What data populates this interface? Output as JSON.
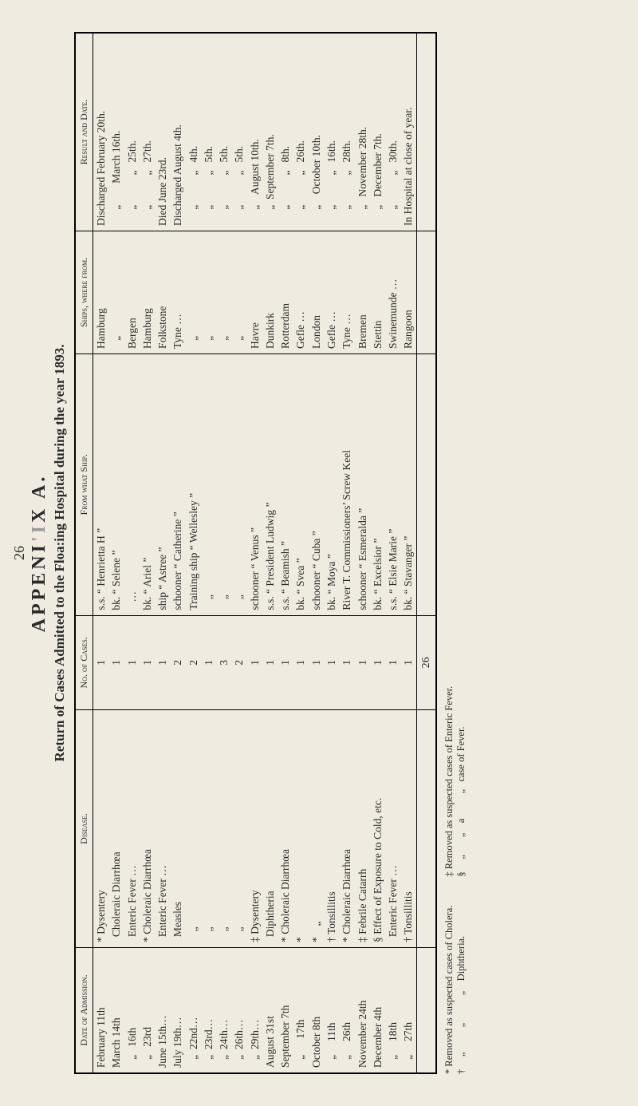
{
  "pageNumber": "26",
  "appendix": {
    "pre": "APPENI",
    "cut": "'I",
    "post": "X A."
  },
  "subtitle": {
    "pre": "Return of Cases Admitted to the Floa",
    "cut": ":",
    "post": "ing Hospital during the year 1893."
  },
  "headers": {
    "date": "Date of Admission.",
    "disease": "Disease.",
    "cases": "No. of Cases.",
    "ship": "From what Ship.",
    "from": "Ships, where from.",
    "result": "Result and Date."
  },
  "rows": [
    {
      "date": "February 11th",
      "disease": "* Dysentery",
      "cases": "1",
      "ship": "s.s. “ Henrietta H ”",
      "from": "Hamburg",
      "result": "Discharged February 20th."
    },
    {
      "date": "March 14th",
      "disease": "  Choleraic Diarrhœa",
      "cases": "1",
      "ship": "bk. “ Selene ”",
      "from": "   „",
      "result": "      „        March 16th."
    },
    {
      "date": "   „   16th",
      "disease": "  Enteric Fever …",
      "cases": "1",
      "ship": "   …",
      "from": "Bergen",
      "result": "      „           „   25th."
    },
    {
      "date": "   „   23rd",
      "disease": "* Choleraic Diarrhœa",
      "cases": "1",
      "ship": "bk. “ Ariel ”",
      "from": "Hamburg",
      "result": "      „           „   27th."
    },
    {
      "date": "June 15th…",
      "disease": "  Enteric Fever …",
      "cases": "1",
      "ship": "ship “ Astree ”",
      "from": "Folkstone",
      "result": "Died June 23rd."
    },
    {
      "date": "July 19th…",
      "disease": "  Measles",
      "cases": "2",
      "ship": "schooner “ Catherine ”",
      "from": "Tyne …",
      "result": "Discharged August 4th."
    },
    {
      "date": "   „  22nd…",
      "disease": "    „",
      "cases": "2",
      "ship": "Training ship “ Wellesley ”",
      "from": "   „",
      "result": "      „           „   4th."
    },
    {
      "date": "   „  23rd…",
      "disease": "    „",
      "cases": "1",
      "ship": "    „",
      "from": "   „",
      "result": "      „           „   5th."
    },
    {
      "date": "   „  24th…",
      "disease": "    „",
      "cases": "3",
      "ship": "    „",
      "from": "   „",
      "result": "      „           „   5th."
    },
    {
      "date": "   „  26th…",
      "disease": "    „",
      "cases": "2",
      "ship": "    „",
      "from": "   „",
      "result": "      „           „   5th."
    },
    {
      "date": "   „  29th…",
      "disease": "‡ Dysentery",
      "cases": "1",
      "ship": "schooner “ Venus ”",
      "from": "Havre",
      "result": "      „    August 10th."
    },
    {
      "date": "August 31st",
      "disease": "  Diphtheria",
      "cases": "1",
      "ship": "s.s. “ President Ludwig ”",
      "from": "Dunkirk",
      "result": "      „  September 7th."
    },
    {
      "date": "September 7th",
      "disease": "* Choleraic Diarrhœa",
      "cases": "1",
      "ship": "s.s. “ Beamish ”",
      "from": "Rotterdam",
      "result": "      „           „   8th."
    },
    {
      "date": "   „      17th",
      "disease": "*",
      "cases": "1",
      "ship": "bk. “ Svea ”",
      "from": "Gefle …",
      "result": "      „           „   26th."
    },
    {
      "date": "October 8th",
      "disease": "*    „",
      "cases": "1",
      "ship": "schooner “ Cuba ”",
      "from": "London",
      "result": "      „    October 10th."
    },
    {
      "date": "   „     11th",
      "disease": "† Tonsillitis",
      "cases": "1",
      "ship": "bk. “ Moya ”",
      "from": "Gefle …",
      "result": "      „           „   16th."
    },
    {
      "date": "   „     26th",
      "disease": "* Choleraic Diarrhœa",
      "cases": "1",
      "ship": "River T. Commissioners’ Screw Keel",
      "from": "Tyne …",
      "result": "      „           „   28th."
    },
    {
      "date": "November 24th",
      "disease": "‡ Febrile Catarrh",
      "cases": "1",
      "ship": "schooner “ Esmeralda ”",
      "from": "Bremen",
      "result": "      „   November 28th."
    },
    {
      "date": "December 4th",
      "disease": "§ Effect of Exposure to Cold, etc.",
      "cases": "1",
      "ship": "bk. “ Excelsior ”",
      "from": "Stettin",
      "result": "      „   December 7th."
    },
    {
      "date": "   „     18th",
      "disease": "  Enteric Fever …",
      "cases": "1",
      "ship": "s.s. “ Elsie Marie ”",
      "from": "Swinemunde …",
      "result": "      „           „   30th."
    },
    {
      "date": "   „     27th",
      "disease": "† Tonsillitis",
      "cases": "1",
      "ship": "bk. “ Stavanger ”",
      "from": "Rangoon",
      "result": "In Hospital at close of year."
    }
  ],
  "total": "26",
  "footnotes": {
    "a": "* Removed as suspected cases of Cholera.",
    "b": "†     „          „           „    Diphtheria.",
    "c": "‡ Removed as suspected cases of Enteric Fever.",
    "d": "§     „       „    a          „   case of Fever."
  }
}
